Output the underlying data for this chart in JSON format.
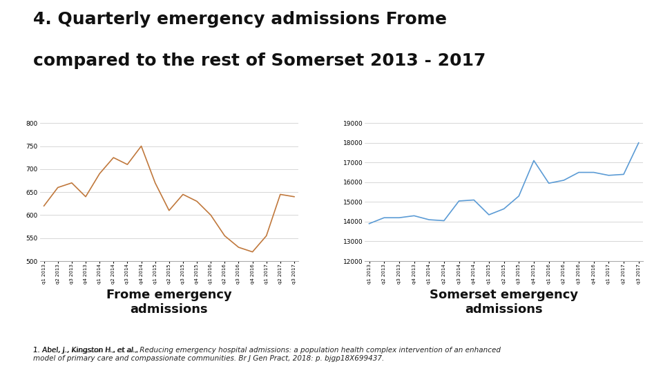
{
  "title_line1": "4. Quarterly emergency admissions Frome",
  "title_line2": "compared to the rest of Somerset 2013 - 2017",
  "title_fontsize": 18,
  "title_fontfamily": "Arial",
  "frome_label": "Frome emergency\nadmissions",
  "somerset_label": "Somerset emergency\nadmissions",
  "footnote_plain": "1. Abel, J., Kingston H., et al., ",
  "footnote_italic": "Reducing emergency hospital admissions: a population health complex intervention of an enhanced\nmodel of primary care and compassionate communities.",
  "footnote_plain2": " Br J Gen Pract, 2018: p. bjgp18X699437.",
  "x_labels": [
    "q1 2013",
    "q2 2013",
    "q3 2013",
    "q4 2013",
    "q1 2014",
    "q2 2014",
    "q3 2014",
    "q4 2014",
    "q1 2015",
    "q2 2015",
    "q3 2015",
    "q4 2015",
    "q1 2016",
    "q2 2016",
    "q3 2016",
    "q4 2016",
    "q1 2017",
    "q2 2017",
    "q3 2017"
  ],
  "frome_values": [
    620,
    660,
    670,
    640,
    690,
    725,
    710,
    750,
    670,
    610,
    645,
    630,
    600,
    555,
    530,
    520,
    555,
    645,
    640
  ],
  "somerset_values": [
    13900,
    14200,
    14200,
    14300,
    14100,
    14050,
    15050,
    15100,
    14350,
    14650,
    15300,
    17100,
    15950,
    16100,
    16500,
    16500,
    16350,
    16400,
    18000
  ],
  "frome_color": "#c0783c",
  "somerset_color": "#5b9bd5",
  "frome_ylim": [
    500,
    800
  ],
  "frome_yticks": [
    500,
    550,
    600,
    650,
    700,
    750,
    800
  ],
  "somerset_ylim": [
    12000,
    19000
  ],
  "somerset_yticks": [
    12000,
    13000,
    14000,
    15000,
    16000,
    17000,
    18000,
    19000
  ],
  "background_color": "#ffffff",
  "chart_bg": "#ffffff",
  "grid_color": "#d0d0d0",
  "label_fontsize": 13,
  "footnote_fontsize": 7.5
}
